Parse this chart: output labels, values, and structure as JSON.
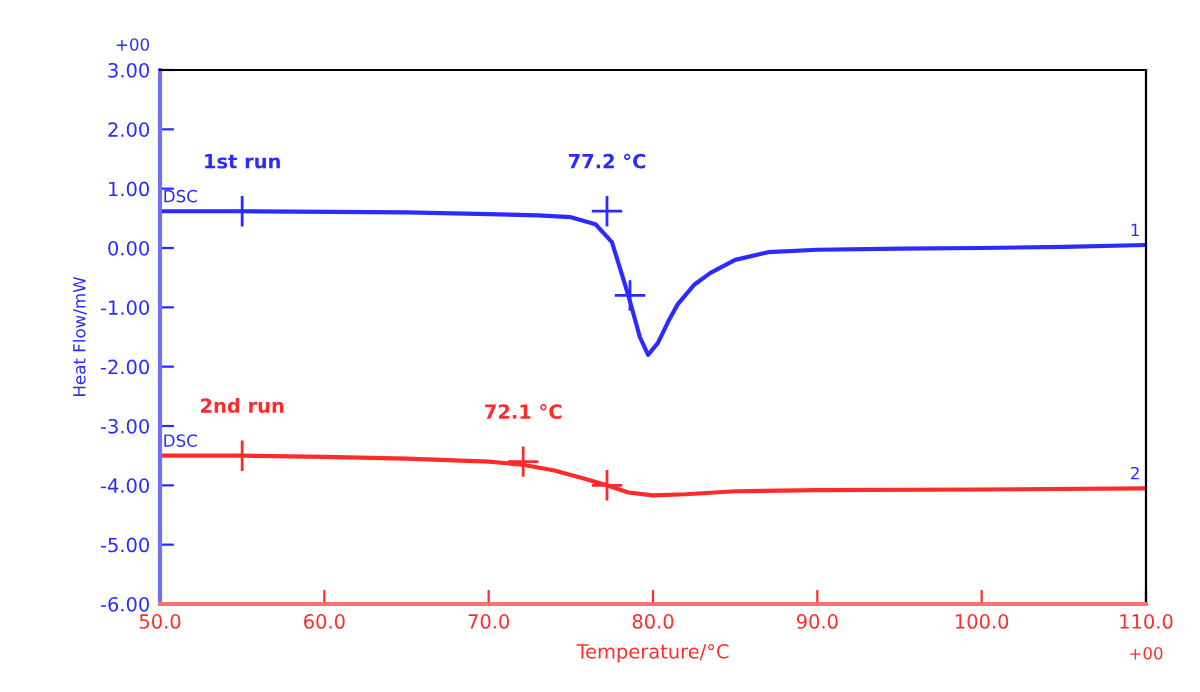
{
  "chart_data": {
    "type": "line",
    "xlabel": "Temperature/°C",
    "ylabel": "Heat Flow/mW",
    "xlim": [
      50,
      110
    ],
    "ylim": [
      -6,
      3
    ],
    "xticks": [
      {
        "value": 50,
        "label": "50.0"
      },
      {
        "value": 60,
        "label": "60.0"
      },
      {
        "value": 70,
        "label": "70.0"
      },
      {
        "value": 80,
        "label": "80.0"
      },
      {
        "value": 90,
        "label": "90.0"
      },
      {
        "value": 100,
        "label": "100.0"
      },
      {
        "value": 110,
        "label": "110.0"
      }
    ],
    "yticks": [
      {
        "value": -6,
        "label": "-6.00"
      },
      {
        "value": -5,
        "label": "-5.00"
      },
      {
        "value": -4,
        "label": "-4.00"
      },
      {
        "value": -3,
        "label": "-3.00"
      },
      {
        "value": -2,
        "label": "-2.00"
      },
      {
        "value": -1,
        "label": "-1.00"
      },
      {
        "value": 0,
        "label": "0.00"
      },
      {
        "value": 1,
        "label": "1.00"
      },
      {
        "value": 2,
        "label": "2.00"
      },
      {
        "value": 3,
        "label": "3.00"
      }
    ],
    "grid": false,
    "legend": false,
    "line_style": "solid",
    "marker": "none",
    "series": [
      {
        "color": "#2b2bff",
        "x": [
          50,
          55,
          65,
          70,
          73,
          75,
          76.5,
          77.5,
          78.5,
          79.2,
          79.7,
          80.3,
          81,
          81.5,
          82.5,
          83.5,
          85,
          87,
          90,
          95,
          100,
          105,
          110
        ],
        "values": [
          0.62,
          0.62,
          0.6,
          0.57,
          0.55,
          0.52,
          0.4,
          0.1,
          -0.8,
          -1.5,
          -1.8,
          -1.6,
          -1.2,
          -0.95,
          -0.62,
          -0.42,
          -0.2,
          -0.07,
          -0.03,
          -0.01,
          0.0,
          0.02,
          0.05
        ]
      },
      {
        "color": "#ff2b2b",
        "x": [
          50,
          55,
          60,
          65,
          70,
          72,
          74,
          76,
          77.2,
          78.5,
          80,
          82,
          85,
          90,
          100,
          110
        ],
        "values": [
          -3.5,
          -3.5,
          -3.52,
          -3.55,
          -3.6,
          -3.65,
          -3.75,
          -3.9,
          -4.0,
          -4.12,
          -4.17,
          -4.15,
          -4.1,
          -4.08,
          -4.07,
          -4.05
        ]
      },
      {
        "type": "scatter",
        "marker": "cross",
        "color": "#2b2bff",
        "x": [
          55,
          77.2,
          78.6
        ],
        "values": [
          0.62,
          0.62,
          -0.8
        ]
      },
      {
        "type": "scatter",
        "marker": "cross",
        "color": "#ff2b2b",
        "x": [
          55,
          72.1,
          77.2
        ],
        "values": [
          -3.5,
          -3.6,
          -4.0
        ]
      }
    ],
    "annotations": [
      {
        "text": "1st run",
        "x": 55,
        "y": 0.62
      },
      {
        "text": "77.2 °C",
        "x": 77.2,
        "y": 0.62
      },
      {
        "text": "2nd run",
        "x": 55,
        "y": -3.5
      },
      {
        "text": "72.1 °C",
        "x": 72.1,
        "y": -3.6
      },
      {
        "text": "DSC",
        "x": 50,
        "y": 0.62
      },
      {
        "text": "DSC",
        "x": 50,
        "y": -3.5
      },
      {
        "text": "1",
        "x": 110,
        "y": 0.05
      },
      {
        "text": "2",
        "x": 110,
        "y": -4.05
      },
      "+00",
      "+00"
    ]
  }
}
